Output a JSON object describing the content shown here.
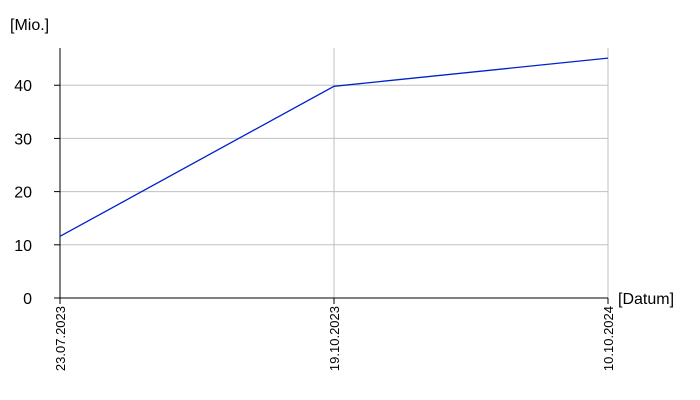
{
  "chart_data": {
    "type": "line",
    "y_label": "[Mio.]",
    "x_label": "[Datum]",
    "categories": [
      "23.07.2023",
      "19.10.2023",
      "10.10.2024"
    ],
    "series": [
      {
        "name": null,
        "color": "#0022cc",
        "values": [
          11.6,
          39.8,
          45.1
        ]
      }
    ],
    "ylim": [
      0,
      47
    ],
    "yticks": [
      0,
      10,
      20,
      30,
      40
    ],
    "grid": true
  }
}
